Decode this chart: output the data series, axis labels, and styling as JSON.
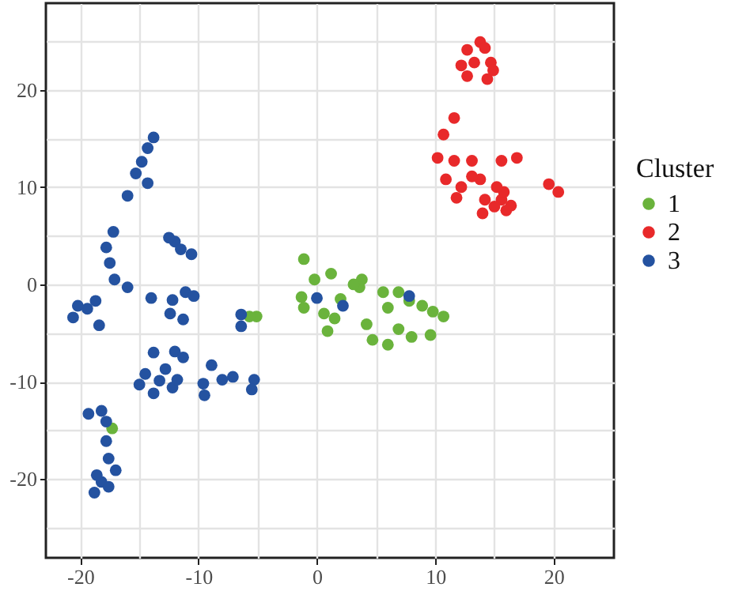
{
  "chart_data": {
    "type": "scatter",
    "legend_title": "Cluster",
    "legend": "right",
    "grid": true,
    "marker": "circle",
    "xlim": [
      -22.9,
      25.1
    ],
    "ylim": [
      -28.1,
      28.9
    ],
    "xticks": [
      -20,
      {
        "value": -15,
        "label": null
      },
      -10,
      {
        "value": -5,
        "label": null
      },
      0,
      {
        "value": 5,
        "label": null
      },
      10,
      {
        "value": 15,
        "label": null
      },
      20
    ],
    "yticks": [
      {
        "value": -25,
        "label": null
      },
      -20,
      {
        "value": -15,
        "label": null
      },
      -10,
      {
        "value": -5,
        "label": null
      },
      0,
      {
        "value": 5,
        "label": null
      },
      10,
      {
        "value": 15,
        "label": null
      },
      20,
      {
        "value": 25,
        "label": null
      }
    ],
    "series": [
      {
        "name": "1",
        "color": "#6ab33c",
        "x": [
          -1.1,
          -1.3,
          -0.2,
          1.2,
          0.9,
          0.6,
          4.2,
          4.7,
          -1.1,
          3.8,
          -5.1,
          -5.7,
          -17.3,
          3.6,
          5.6,
          6.9,
          8.9,
          10.7,
          6.0,
          8.0,
          9.6,
          6.9,
          6.0,
          3.1,
          2.0,
          1.5,
          7.8,
          9.8
        ],
        "values": [
          -2.4,
          -1.3,
          0.5,
          1.1,
          -4.8,
          -3.0,
          -4.1,
          -5.7,
          2.6,
          0.5,
          -3.3,
          -3.3,
          -14.8,
          -0.3,
          -0.8,
          -0.8,
          -2.2,
          -3.3,
          -6.2,
          -5.4,
          -5.2,
          -4.6,
          -2.4,
          0.0,
          -1.5,
          -3.5,
          -1.7,
          -2.8
        ]
      },
      {
        "name": "2",
        "color": "#e8292a",
        "x": [
          13.8,
          14.2,
          12.7,
          12.2,
          13.3,
          14.7,
          14.4,
          12.7,
          14.9,
          11.6,
          10.7,
          10.2,
          11.6,
          13.1,
          15.6,
          16.9,
          10.9,
          12.2,
          13.8,
          11.8,
          15.6,
          14.2,
          16.4,
          14.0,
          16.0,
          19.6,
          20.4,
          13.1,
          15.0,
          15.8,
          15.2
        ],
        "values": [
          24.9,
          24.3,
          24.1,
          22.5,
          22.8,
          22.8,
          21.1,
          21.4,
          22.0,
          17.1,
          15.4,
          13.0,
          12.7,
          12.7,
          12.7,
          13.0,
          10.8,
          10.0,
          10.8,
          8.9,
          8.7,
          8.7,
          8.1,
          7.3,
          7.6,
          10.3,
          9.5,
          11.1,
          8.0,
          9.5,
          10.0
        ]
      },
      {
        "name": "3",
        "color": "#2452a0",
        "x": [
          -13.8,
          -14.3,
          -14.8,
          -15.3,
          -14.3,
          -16.0,
          -12.0,
          -10.6,
          -11.5,
          -12.5,
          -17.2,
          -17.1,
          -17.8,
          -16.0,
          -17.5,
          -20.6,
          -19.4,
          -20.2,
          -18.4,
          -18.7,
          -14.0,
          -12.4,
          -11.3,
          -11.1,
          -10.4,
          -12.2,
          -6.4,
          -6.4,
          -13.3,
          -14.5,
          -12.2,
          -13.8,
          -12.8,
          -15.0,
          -11.8,
          -13.8,
          -12.0,
          -11.3,
          -9.6,
          -5.3,
          -8.9,
          -9.5,
          -7.1,
          -5.5,
          -8.0,
          -19.3,
          -18.2,
          -17.8,
          -17.8,
          -17.6,
          -17.0,
          -18.2,
          -18.8,
          -17.6,
          -18.6,
          0.0,
          2.2,
          7.8
        ],
        "values": [
          15.1,
          14.0,
          12.6,
          11.4,
          10.4,
          9.1,
          4.4,
          3.1,
          3.6,
          4.8,
          5.4,
          0.5,
          3.8,
          -0.3,
          2.2,
          -3.4,
          -2.5,
          -2.2,
          -4.2,
          -1.7,
          -1.4,
          -3.0,
          -3.6,
          -0.8,
          -1.2,
          -1.6,
          -3.1,
          -4.3,
          -9.9,
          -9.2,
          -10.6,
          -11.2,
          -8.7,
          -10.3,
          -9.8,
          -7.0,
          -6.9,
          -7.5,
          -10.2,
          -9.8,
          -8.3,
          -11.4,
          -9.5,
          -10.8,
          -9.8,
          -13.3,
          -13.0,
          -14.1,
          -16.1,
          -17.9,
          -19.1,
          -20.3,
          -21.4,
          -20.8,
          -19.6,
          -1.4,
          -2.2,
          -1.2
        ]
      }
    ]
  }
}
